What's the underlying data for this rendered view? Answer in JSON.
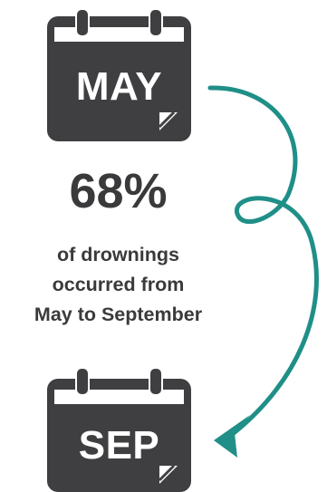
{
  "calendars": {
    "start_month": "MAY",
    "end_month": "SEP"
  },
  "statistic": {
    "value": "68%",
    "lines": [
      "of drownings",
      "occurred from",
      "May to September"
    ]
  },
  "colors": {
    "calendar": "#3f3f42",
    "text": "#3a3a3c",
    "arrow": "#1f8f88",
    "background": "#ffffff"
  },
  "icons": {
    "calendar": "calendar-icon",
    "page_curl": "page-curl-icon",
    "arrow": "curved-arrow-icon"
  }
}
